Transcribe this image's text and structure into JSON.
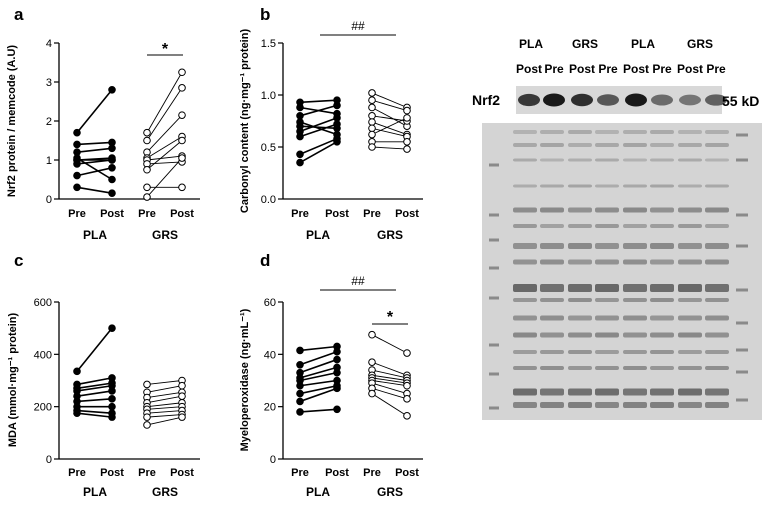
{
  "chart_data": [
    {
      "type": "scatter",
      "panel": "a",
      "ylabel": "Nrf2 protein / memcode (A.U)",
      "ylim": [
        0,
        4
      ],
      "yticks": [
        "0",
        "1",
        "2",
        "3",
        "4"
      ],
      "tick_labels": [
        "Pre",
        "Post",
        "Pre",
        "Post"
      ],
      "groups": [
        "PLA",
        "GRS"
      ],
      "annotation": "*",
      "series": [
        {
          "group": "PLA",
          "pre": [
            1.7,
            1.4,
            1.2,
            1.0,
            1.0,
            0.9,
            0.6,
            0.3,
            1.05
          ],
          "post": [
            2.8,
            1.45,
            1.3,
            1.0,
            1.05,
            1.0,
            0.8,
            0.15,
            0.5
          ]
        },
        {
          "group": "GRS",
          "pre": [
            1.7,
            1.5,
            1.2,
            1.05,
            1.0,
            0.9,
            0.75,
            0.05,
            0.3
          ],
          "post": [
            3.25,
            2.85,
            2.15,
            1.6,
            1.1,
            0.95,
            1.5,
            1.05,
            0.3
          ]
        }
      ]
    },
    {
      "type": "scatter",
      "panel": "b",
      "ylabel": "Carbonyl content (ng·mg⁻¹ protein)",
      "ylim": [
        0,
        1.5
      ],
      "yticks": [
        "0.0",
        "0.5",
        "1.0",
        "1.5"
      ],
      "tick_labels": [
        "Pre",
        "Post",
        "Pre",
        "Post"
      ],
      "groups": [
        "PLA",
        "GRS"
      ],
      "annotation": "##",
      "series": [
        {
          "group": "PLA",
          "pre": [
            0.93,
            0.88,
            0.8,
            0.74,
            0.7,
            0.65,
            0.6,
            0.43,
            0.35
          ],
          "post": [
            0.95,
            0.82,
            0.9,
            0.62,
            0.68,
            0.78,
            0.72,
            0.58,
            0.55
          ]
        },
        {
          "group": "GRS",
          "pre": [
            1.02,
            0.95,
            0.88,
            0.8,
            0.74,
            0.68,
            0.62,
            0.55,
            0.5
          ],
          "post": [
            0.88,
            0.85,
            0.7,
            0.75,
            0.62,
            0.6,
            0.78,
            0.55,
            0.48
          ]
        }
      ]
    },
    {
      "type": "scatter",
      "panel": "c",
      "ylabel": "MDA (mmol·mg⁻¹ protein)",
      "ylim": [
        0,
        600
      ],
      "yticks": [
        "0",
        "200",
        "400",
        "600"
      ],
      "tick_labels": [
        "Pre",
        "Post",
        "Pre",
        "Post"
      ],
      "groups": [
        "PLA",
        "GRS"
      ],
      "annotation": "",
      "series": [
        {
          "group": "PLA",
          "pre": [
            335,
            285,
            270,
            240,
            220,
            200,
            185,
            175,
            260
          ],
          "post": [
            500,
            310,
            290,
            260,
            230,
            200,
            175,
            160,
            280
          ]
        },
        {
          "group": "GRS",
          "pre": [
            285,
            255,
            235,
            215,
            200,
            190,
            175,
            160,
            130
          ],
          "post": [
            300,
            280,
            255,
            240,
            215,
            200,
            185,
            170,
            160
          ]
        }
      ]
    },
    {
      "type": "scatter",
      "panel": "d",
      "ylabel": "Myeloperoxidase (ng·mL⁻¹)",
      "ylim": [
        0,
        60
      ],
      "yticks": [
        "0",
        "20",
        "40",
        "60"
      ],
      "tick_labels": [
        "Pre",
        "Post",
        "Pre",
        "Post"
      ],
      "groups": [
        "PLA",
        "GRS"
      ],
      "annotation_top": "##",
      "annotation": "*",
      "series": [
        {
          "group": "PLA",
          "pre": [
            41.5,
            36,
            33,
            31,
            30,
            28,
            25,
            22,
            18
          ],
          "post": [
            43,
            41,
            38,
            35,
            33,
            30,
            28,
            27,
            19
          ]
        },
        {
          "group": "GRS",
          "pre": [
            47.5,
            37,
            34,
            32,
            31,
            30,
            29,
            27,
            25
          ],
          "post": [
            40.5,
            32,
            31,
            30,
            29,
            28,
            25,
            23,
            16.5
          ]
        }
      ]
    }
  ],
  "blot": {
    "lane_labels_top": [
      "PLA",
      "GRS",
      "PLA",
      "GRS"
    ],
    "lane_labels_bottom": [
      "Post",
      "Pre",
      "Post",
      "Pre",
      "Post",
      "Pre",
      "Post",
      "Pre"
    ],
    "band_label": "Nrf2",
    "size_label": "55 kD",
    "band_intensity": [
      0.85,
      1.0,
      0.9,
      0.7,
      1.0,
      0.6,
      0.55,
      0.65
    ]
  },
  "colors": {
    "closed": "#000000",
    "open": "#ffffff",
    "axis": "#000000",
    "blot_bg": "#d8d8d8",
    "stain_band": "#6e6e6e"
  }
}
